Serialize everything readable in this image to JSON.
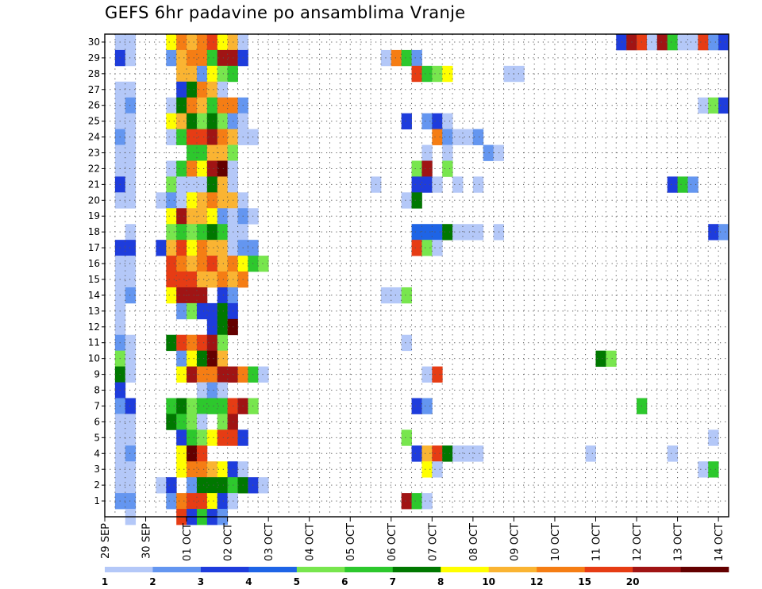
{
  "chart_data": {
    "type": "heatmap",
    "title": "GEFS 6hr padavine po ansamblima Vranje",
    "xlabel": "",
    "ylabel": "",
    "ylim": [
      0,
      30
    ],
    "y_ticks": [
      "1",
      "2",
      "3",
      "4",
      "5",
      "6",
      "7",
      "8",
      "9",
      "10",
      "11",
      "12",
      "13",
      "14",
      "15",
      "16",
      "17",
      "18",
      "19",
      "20",
      "21",
      "22",
      "23",
      "24",
      "25",
      "26",
      "27",
      "28",
      "29",
      "30"
    ],
    "x_ticks": [
      "29 SEP",
      "30 SEP",
      "01 OCT",
      "02 OCT",
      "03 OCT",
      "04 OCT",
      "05 OCT",
      "06 OCT",
      "07 OCT",
      "08 OCT",
      "09 OCT",
      "10 OCT",
      "11 OCT",
      "12 OCT",
      "13 OCT",
      "14 OCT"
    ],
    "time_steps": 61,
    "time_step_hours": 6,
    "colorbar": {
      "labels": [
        "1",
        "2",
        "3",
        "4",
        "5",
        "6",
        "7",
        "8",
        "10",
        "12",
        "15",
        "20"
      ],
      "colors": [
        "#B4C8F8",
        "#6496F0",
        "#1E3CDC",
        "#1E64E6",
        "#78E64E",
        "#2DC82D",
        "#007800",
        "#FFFF00",
        "#FAB432",
        "#F57D14",
        "#E63C14",
        "#A01414",
        "#640000"
      ],
      "legend": [
        "1–2",
        "2–3",
        "3–4",
        "4–5",
        "5–6",
        "6–7",
        "7–8",
        "8–10",
        "10–12",
        "12–15",
        "15–20",
        "20+"
      ]
    },
    "cells": [
      [
        30,
        1,
        1
      ],
      [
        30,
        2,
        1
      ],
      [
        30,
        6,
        8
      ],
      [
        30,
        7,
        10
      ],
      [
        30,
        8,
        9
      ],
      [
        30,
        9,
        10
      ],
      [
        30,
        10,
        11
      ],
      [
        30,
        11,
        8
      ],
      [
        30,
        12,
        9
      ],
      [
        30,
        13,
        1
      ],
      [
        30,
        50,
        3
      ],
      [
        30,
        51,
        12
      ],
      [
        30,
        52,
        11
      ],
      [
        30,
        53,
        1
      ],
      [
        30,
        54,
        12
      ],
      [
        30,
        55,
        6
      ],
      [
        30,
        56,
        1
      ],
      [
        30,
        57,
        1
      ],
      [
        30,
        58,
        11
      ],
      [
        30,
        59,
        2
      ],
      [
        30,
        60,
        3
      ],
      [
        29,
        1,
        3
      ],
      [
        29,
        2,
        1
      ],
      [
        29,
        6,
        2
      ],
      [
        29,
        7,
        9
      ],
      [
        29,
        8,
        10
      ],
      [
        29,
        9,
        10
      ],
      [
        29,
        10,
        6
      ],
      [
        29,
        11,
        12
      ],
      [
        29,
        12,
        12
      ],
      [
        29,
        13,
        3
      ],
      [
        29,
        27,
        1
      ],
      [
        29,
        28,
        10
      ],
      [
        29,
        29,
        6
      ],
      [
        29,
        30,
        2
      ],
      [
        28,
        7,
        9
      ],
      [
        28,
        8,
        9
      ],
      [
        28,
        9,
        2
      ],
      [
        28,
        10,
        8
      ],
      [
        28,
        11,
        5
      ],
      [
        28,
        12,
        6
      ],
      [
        28,
        30,
        11
      ],
      [
        28,
        31,
        6
      ],
      [
        28,
        32,
        5
      ],
      [
        28,
        33,
        8
      ],
      [
        28,
        39,
        1
      ],
      [
        28,
        40,
        1
      ],
      [
        27,
        1,
        1
      ],
      [
        27,
        2,
        1
      ],
      [
        27,
        7,
        3
      ],
      [
        27,
        8,
        7
      ],
      [
        27,
        9,
        10
      ],
      [
        27,
        10,
        9
      ],
      [
        27,
        11,
        1
      ],
      [
        26,
        1,
        1
      ],
      [
        26,
        2,
        2
      ],
      [
        26,
        6,
        1
      ],
      [
        26,
        7,
        7
      ],
      [
        26,
        8,
        10
      ],
      [
        26,
        9,
        9
      ],
      [
        26,
        10,
        6
      ],
      [
        26,
        11,
        10
      ],
      [
        26,
        12,
        10
      ],
      [
        26,
        13,
        2
      ],
      [
        26,
        58,
        1
      ],
      [
        26,
        59,
        5
      ],
      [
        26,
        60,
        3
      ],
      [
        25,
        1,
        1
      ],
      [
        25,
        2,
        1
      ],
      [
        25,
        6,
        8
      ],
      [
        25,
        7,
        9
      ],
      [
        25,
        8,
        7
      ],
      [
        25,
        9,
        5
      ],
      [
        25,
        10,
        7
      ],
      [
        25,
        11,
        5
      ],
      [
        25,
        12,
        2
      ],
      [
        25,
        13,
        1
      ],
      [
        25,
        29,
        3
      ],
      [
        25,
        31,
        2
      ],
      [
        25,
        32,
        3
      ],
      [
        25,
        33,
        1
      ],
      [
        24,
        1,
        2
      ],
      [
        24,
        2,
        1
      ],
      [
        24,
        6,
        1
      ],
      [
        24,
        7,
        6
      ],
      [
        24,
        8,
        11
      ],
      [
        24,
        9,
        11
      ],
      [
        24,
        10,
        12
      ],
      [
        24,
        11,
        10
      ],
      [
        24,
        12,
        9
      ],
      [
        24,
        13,
        1
      ],
      [
        24,
        14,
        1
      ],
      [
        24,
        32,
        10
      ],
      [
        24,
        33,
        2
      ],
      [
        24,
        34,
        1
      ],
      [
        24,
        35,
        1
      ],
      [
        24,
        36,
        2
      ],
      [
        23,
        1,
        1
      ],
      [
        23,
        2,
        1
      ],
      [
        23,
        8,
        6
      ],
      [
        23,
        9,
        6
      ],
      [
        23,
        10,
        9
      ],
      [
        23,
        11,
        9
      ],
      [
        23,
        12,
        5
      ],
      [
        23,
        31,
        1
      ],
      [
        23,
        33,
        1
      ],
      [
        23,
        37,
        2
      ],
      [
        23,
        38,
        1
      ],
      [
        22,
        1,
        1
      ],
      [
        22,
        2,
        1
      ],
      [
        22,
        6,
        1
      ],
      [
        22,
        7,
        6
      ],
      [
        22,
        8,
        10
      ],
      [
        22,
        9,
        8
      ],
      [
        22,
        10,
        12
      ],
      [
        22,
        11,
        13
      ],
      [
        22,
        12,
        1
      ],
      [
        22,
        30,
        5
      ],
      [
        22,
        31,
        12
      ],
      [
        22,
        33,
        5
      ],
      [
        21,
        1,
        3
      ],
      [
        21,
        2,
        1
      ],
      [
        21,
        6,
        5
      ],
      [
        21,
        7,
        1
      ],
      [
        21,
        8,
        1
      ],
      [
        21,
        9,
        1
      ],
      [
        21,
        10,
        7
      ],
      [
        21,
        11,
        9
      ],
      [
        21,
        12,
        1
      ],
      [
        21,
        26,
        1
      ],
      [
        21,
        30,
        3
      ],
      [
        21,
        31,
        3
      ],
      [
        21,
        32,
        1
      ],
      [
        21,
        34,
        1
      ],
      [
        21,
        36,
        1
      ],
      [
        21,
        55,
        3
      ],
      [
        21,
        56,
        6
      ],
      [
        21,
        57,
        2
      ],
      [
        20,
        1,
        1
      ],
      [
        20,
        2,
        1
      ],
      [
        20,
        5,
        1
      ],
      [
        20,
        6,
        2
      ],
      [
        20,
        7,
        1
      ],
      [
        20,
        8,
        8
      ],
      [
        20,
        9,
        9
      ],
      [
        20,
        10,
        10
      ],
      [
        20,
        11,
        9
      ],
      [
        20,
        12,
        9
      ],
      [
        20,
        13,
        1
      ],
      [
        20,
        29,
        1
      ],
      [
        20,
        30,
        7
      ],
      [
        19,
        6,
        8
      ],
      [
        19,
        7,
        12
      ],
      [
        19,
        8,
        9
      ],
      [
        19,
        9,
        9
      ],
      [
        19,
        10,
        8
      ],
      [
        19,
        11,
        2
      ],
      [
        19,
        12,
        1
      ],
      [
        19,
        13,
        2
      ],
      [
        19,
        14,
        1
      ],
      [
        18,
        2,
        1
      ],
      [
        18,
        6,
        5
      ],
      [
        18,
        7,
        6
      ],
      [
        18,
        8,
        5
      ],
      [
        18,
        9,
        6
      ],
      [
        18,
        10,
        7
      ],
      [
        18,
        11,
        6
      ],
      [
        18,
        12,
        1
      ],
      [
        18,
        13,
        1
      ],
      [
        18,
        30,
        4
      ],
      [
        18,
        31,
        4
      ],
      [
        18,
        32,
        4
      ],
      [
        18,
        33,
        7
      ],
      [
        18,
        34,
        1
      ],
      [
        18,
        35,
        1
      ],
      [
        18,
        36,
        1
      ],
      [
        18,
        38,
        1
      ],
      [
        18,
        59,
        3
      ],
      [
        18,
        60,
        2
      ],
      [
        17,
        1,
        3
      ],
      [
        17,
        2,
        3
      ],
      [
        17,
        5,
        3
      ],
      [
        17,
        6,
        9
      ],
      [
        17,
        7,
        11
      ],
      [
        17,
        8,
        8
      ],
      [
        17,
        9,
        10
      ],
      [
        17,
        10,
        9
      ],
      [
        17,
        11,
        9
      ],
      [
        17,
        12,
        1
      ],
      [
        17,
        13,
        2
      ],
      [
        17,
        14,
        2
      ],
      [
        17,
        30,
        11
      ],
      [
        17,
        31,
        5
      ],
      [
        17,
        32,
        1
      ],
      [
        16,
        1,
        1
      ],
      [
        16,
        2,
        1
      ],
      [
        16,
        6,
        11
      ],
      [
        16,
        7,
        10
      ],
      [
        16,
        8,
        9
      ],
      [
        16,
        9,
        10
      ],
      [
        16,
        10,
        11
      ],
      [
        16,
        11,
        9
      ],
      [
        16,
        12,
        10
      ],
      [
        16,
        13,
        8
      ],
      [
        16,
        14,
        6
      ],
      [
        16,
        15,
        5
      ],
      [
        15,
        1,
        1
      ],
      [
        15,
        2,
        1
      ],
      [
        15,
        6,
        11
      ],
      [
        15,
        7,
        11
      ],
      [
        15,
        8,
        11
      ],
      [
        15,
        9,
        9
      ],
      [
        15,
        10,
        9
      ],
      [
        15,
        11,
        10
      ],
      [
        15,
        12,
        9
      ],
      [
        15,
        13,
        10
      ],
      [
        14,
        1,
        1
      ],
      [
        14,
        2,
        2
      ],
      [
        14,
        6,
        8
      ],
      [
        14,
        7,
        12
      ],
      [
        14,
        8,
        12
      ],
      [
        14,
        9,
        12
      ],
      [
        14,
        11,
        3
      ],
      [
        14,
        12,
        2
      ],
      [
        14,
        27,
        1
      ],
      [
        14,
        28,
        1
      ],
      [
        14,
        29,
        5
      ],
      [
        13,
        1,
        1
      ],
      [
        13,
        7,
        2
      ],
      [
        13,
        8,
        5
      ],
      [
        13,
        9,
        3
      ],
      [
        13,
        10,
        3
      ],
      [
        13,
        11,
        7
      ],
      [
        13,
        12,
        3
      ],
      [
        12,
        1,
        1
      ],
      [
        12,
        10,
        3
      ],
      [
        12,
        11,
        7
      ],
      [
        12,
        12,
        13
      ],
      [
        11,
        1,
        2
      ],
      [
        11,
        2,
        1
      ],
      [
        11,
        6,
        7
      ],
      [
        11,
        7,
        11
      ],
      [
        11,
        8,
        10
      ],
      [
        11,
        9,
        11
      ],
      [
        11,
        10,
        12
      ],
      [
        11,
        11,
        5
      ],
      [
        11,
        29,
        1
      ],
      [
        10,
        1,
        5
      ],
      [
        10,
        2,
        1
      ],
      [
        10,
        7,
        2
      ],
      [
        10,
        8,
        8
      ],
      [
        10,
        9,
        7
      ],
      [
        10,
        10,
        13
      ],
      [
        10,
        11,
        9
      ],
      [
        10,
        48,
        7
      ],
      [
        10,
        49,
        5
      ],
      [
        9,
        1,
        7
      ],
      [
        9,
        2,
        1
      ],
      [
        9,
        7,
        8
      ],
      [
        9,
        8,
        12
      ],
      [
        9,
        9,
        10
      ],
      [
        9,
        10,
        10
      ],
      [
        9,
        11,
        12
      ],
      [
        9,
        12,
        12
      ],
      [
        9,
        13,
        10
      ],
      [
        9,
        14,
        6
      ],
      [
        9,
        15,
        1
      ],
      [
        9,
        31,
        1
      ],
      [
        9,
        32,
        11
      ],
      [
        8,
        1,
        3
      ],
      [
        8,
        9,
        1
      ],
      [
        8,
        10,
        2
      ],
      [
        8,
        11,
        1
      ],
      [
        7,
        1,
        2
      ],
      [
        7,
        2,
        3
      ],
      [
        7,
        6,
        6
      ],
      [
        7,
        7,
        7
      ],
      [
        7,
        8,
        5
      ],
      [
        7,
        9,
        6
      ],
      [
        7,
        10,
        6
      ],
      [
        7,
        11,
        6
      ],
      [
        7,
        12,
        11
      ],
      [
        7,
        13,
        12
      ],
      [
        7,
        14,
        5
      ],
      [
        7,
        30,
        3
      ],
      [
        7,
        31,
        2
      ],
      [
        7,
        52,
        6
      ],
      [
        6,
        1,
        1
      ],
      [
        6,
        2,
        1
      ],
      [
        6,
        6,
        7
      ],
      [
        6,
        7,
        6
      ],
      [
        6,
        8,
        5
      ],
      [
        6,
        9,
        1
      ],
      [
        6,
        11,
        5
      ],
      [
        6,
        12,
        12
      ],
      [
        5,
        1,
        1
      ],
      [
        5,
        2,
        1
      ],
      [
        5,
        7,
        3
      ],
      [
        5,
        8,
        6
      ],
      [
        5,
        9,
        5
      ],
      [
        5,
        10,
        8
      ],
      [
        5,
        11,
        11
      ],
      [
        5,
        12,
        11
      ],
      [
        5,
        13,
        3
      ],
      [
        5,
        29,
        5
      ],
      [
        5,
        59,
        1
      ],
      [
        4,
        1,
        1
      ],
      [
        4,
        2,
        2
      ],
      [
        4,
        7,
        8
      ],
      [
        4,
        8,
        13
      ],
      [
        4,
        9,
        11
      ],
      [
        4,
        30,
        3
      ],
      [
        4,
        31,
        9
      ],
      [
        4,
        32,
        11
      ],
      [
        4,
        33,
        7
      ],
      [
        4,
        34,
        1
      ],
      [
        4,
        35,
        1
      ],
      [
        4,
        36,
        1
      ],
      [
        4,
        47,
        1
      ],
      [
        4,
        55,
        1
      ],
      [
        3,
        1,
        1
      ],
      [
        3,
        2,
        1
      ],
      [
        3,
        7,
        8
      ],
      [
        3,
        8,
        10
      ],
      [
        3,
        9,
        10
      ],
      [
        3,
        10,
        9
      ],
      [
        3,
        11,
        8
      ],
      [
        3,
        12,
        3
      ],
      [
        3,
        13,
        1
      ],
      [
        3,
        31,
        8
      ],
      [
        3,
        32,
        1
      ],
      [
        3,
        58,
        1
      ],
      [
        3,
        59,
        6
      ],
      [
        2,
        1,
        1
      ],
      [
        2,
        2,
        1
      ],
      [
        2,
        5,
        1
      ],
      [
        2,
        6,
        3
      ],
      [
        2,
        8,
        2
      ],
      [
        2,
        9,
        7
      ],
      [
        2,
        10,
        7
      ],
      [
        2,
        11,
        7
      ],
      [
        2,
        12,
        6
      ],
      [
        2,
        13,
        7
      ],
      [
        2,
        14,
        3
      ],
      [
        2,
        15,
        1
      ],
      [
        1,
        1,
        2
      ],
      [
        1,
        2,
        2
      ],
      [
        1,
        6,
        2
      ],
      [
        1,
        7,
        10
      ],
      [
        1,
        8,
        11
      ],
      [
        1,
        9,
        11
      ],
      [
        1,
        10,
        8
      ],
      [
        1,
        11,
        3
      ],
      [
        1,
        12,
        1
      ],
      [
        1,
        29,
        12
      ],
      [
        1,
        30,
        6
      ],
      [
        1,
        31,
        1
      ],
      [
        0,
        2,
        1
      ],
      [
        0,
        7,
        11
      ],
      [
        0,
        8,
        3
      ],
      [
        0,
        9,
        6
      ],
      [
        0,
        10,
        3
      ],
      [
        0,
        11,
        2
      ]
    ]
  }
}
